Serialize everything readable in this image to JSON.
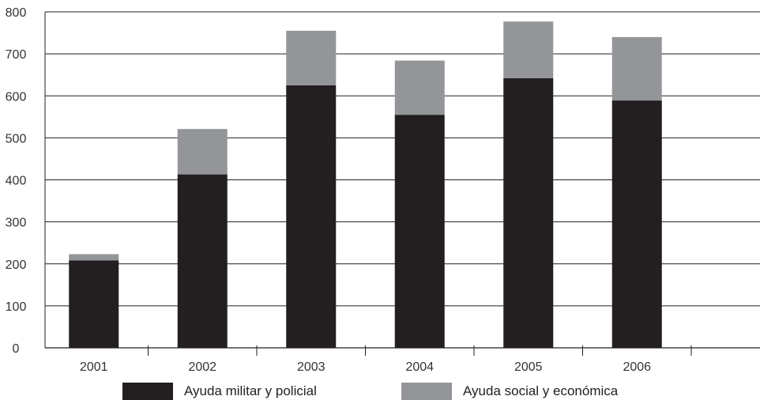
{
  "chart_data": {
    "type": "bar",
    "stacked": true,
    "categories": [
      "2001",
      "2002",
      "2003",
      "2004",
      "2005",
      "2006"
    ],
    "series": [
      {
        "name": "Ayuda militar y policial",
        "color": "#231f20",
        "values": [
          208,
          413,
          625,
          555,
          642,
          589
        ]
      },
      {
        "name": "Ayuda social y económica",
        "color": "#939598",
        "values": [
          15,
          108,
          130,
          129,
          135,
          151
        ]
      }
    ],
    "yticks": [
      0,
      100,
      200,
      300,
      400,
      500,
      600,
      700,
      800
    ],
    "ylim": [
      0,
      800
    ],
    "grid": true,
    "legend_position": "bottom",
    "title": "",
    "xlabel": "",
    "ylabel": ""
  }
}
